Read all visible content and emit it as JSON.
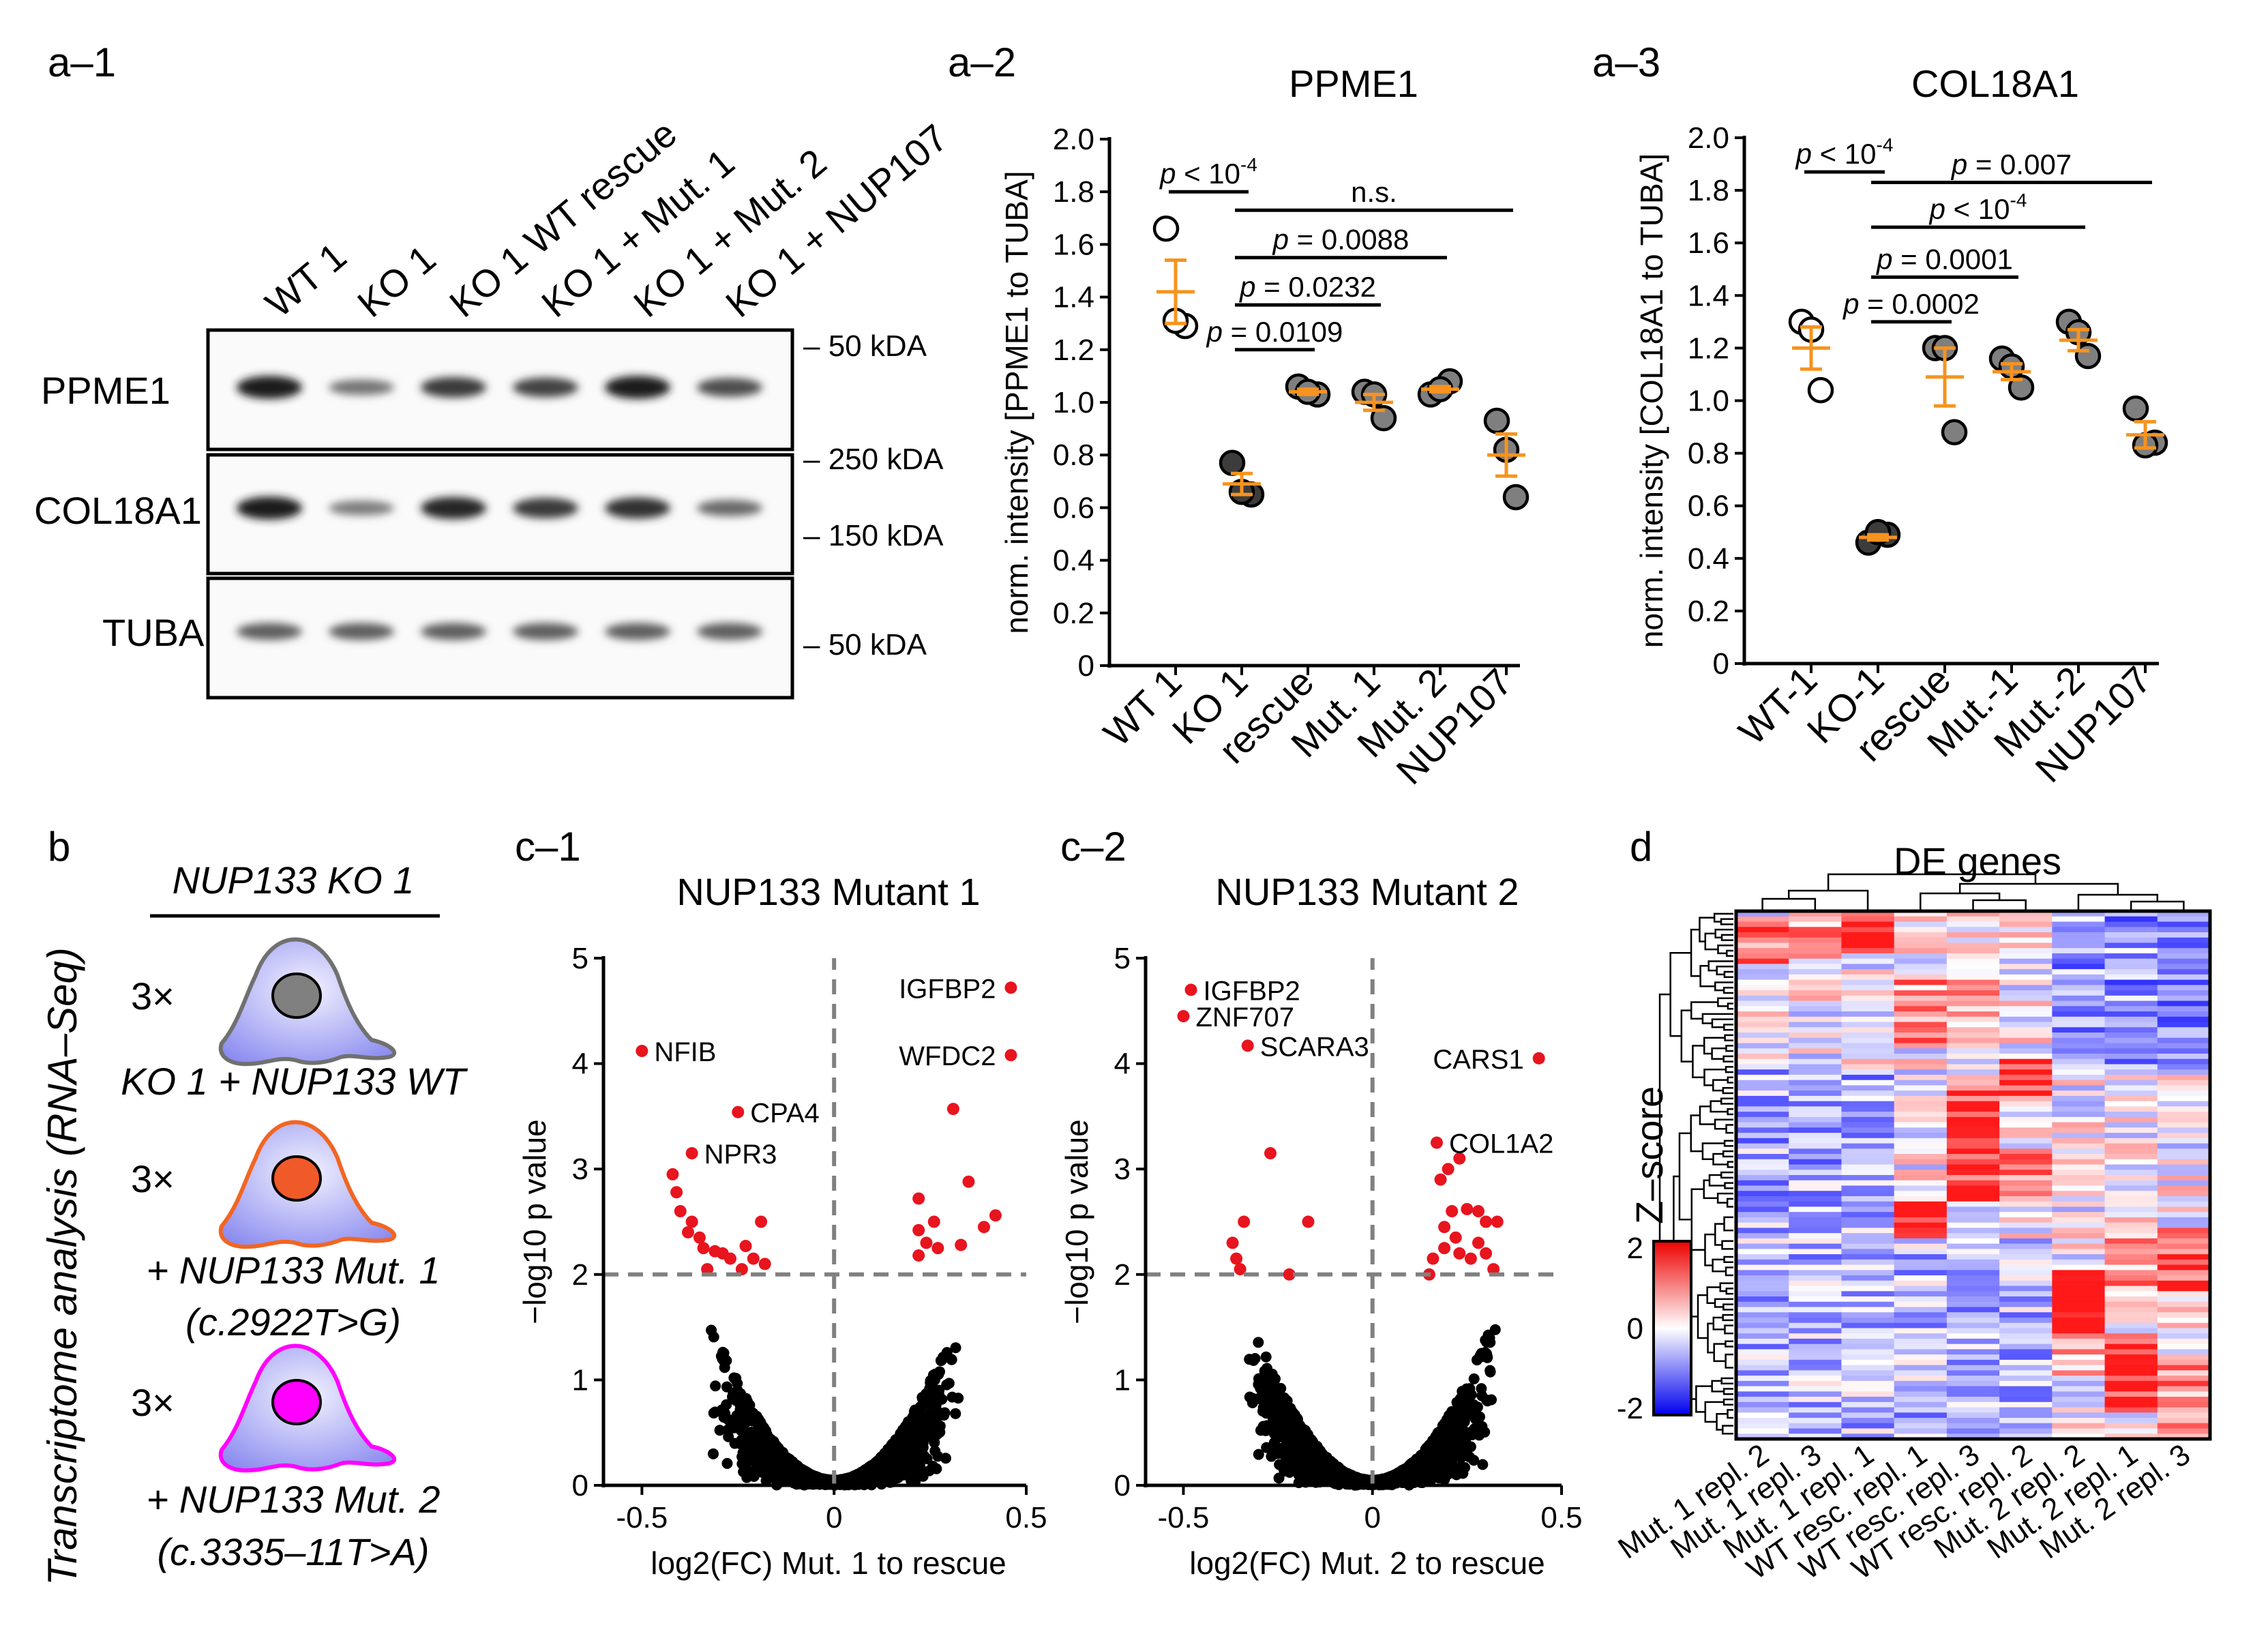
{
  "panels": {
    "a1": {
      "label": "a–1",
      "lanes": [
        "WT 1",
        "KO 1",
        "KO 1 WT rescue",
        "KO 1 + Mut. 1",
        "KO 1 + Mut. 2",
        "KO 1 + NUP107"
      ],
      "blots": [
        {
          "name": "PPME1",
          "markers": [
            "– 50 kDA"
          ]
        },
        {
          "name": "COL18A1",
          "markers": [
            "– 250 kDA",
            "– 150 kDA"
          ]
        },
        {
          "name": "TUBA",
          "markers": [
            "– 50 kDA"
          ]
        }
      ],
      "band_intensity": {
        "PPME1": [
          0.9,
          0.45,
          0.75,
          0.7,
          0.9,
          0.65
        ],
        "COL18A1": [
          0.9,
          0.4,
          0.85,
          0.75,
          0.8,
          0.5
        ],
        "TUBA": [
          0.55,
          0.55,
          0.55,
          0.55,
          0.55,
          0.55
        ]
      }
    },
    "b": {
      "label": "b",
      "vertical_title": "Transcriptome analysis (RNA–Seq)",
      "header": "NUP133 KO 1",
      "groups": [
        {
          "count": "3×",
          "line1": "KO 1 + NUP133 WT",
          "line2": "",
          "nucleus_color": "#808080",
          "outline_color": "#707070"
        },
        {
          "count": "3×",
          "line1": "+ NUP133 Mut. 1",
          "line2": "(c.2922T>G)",
          "nucleus_color": "#f05a28",
          "outline_color": "#f26522"
        },
        {
          "count": "3×",
          "line1": "+ NUP133 Mut. 2",
          "line2": "(c.3335–11T>A)",
          "nucleus_color": "#ff00ff",
          "outline_color": "#ff00ff"
        }
      ]
    },
    "c1_labels": {
      "label": "c–1",
      "genes": [
        "IGFBP2",
        "WFDC2",
        "NFIB",
        "CPA4",
        "NPR3"
      ]
    },
    "c2_labels": {
      "label": "c–2",
      "genes": [
        "IGFBP2",
        "ZNF707",
        "SCARA3",
        "CARS1",
        "COL1A2"
      ]
    },
    "d": {
      "label": "d",
      "title": "DE genes",
      "colorbar_title": "Z–score",
      "colorbar_ticks": [
        "2",
        "0",
        "-2"
      ],
      "columns": [
        "Mut. 1 repl. 2",
        "Mut. 1 repl. 3",
        "Mut. 1 repl. 1",
        "WT resc. repl. 1",
        "WT resc. repl. 3",
        "WT resc. repl. 2",
        "Mut. 2 repl. 2",
        "Mut. 2 repl. 1",
        "Mut. 2 repl. 3"
      ]
    }
  },
  "chart_data": [
    {
      "id": "a2",
      "panel_label": "a–2",
      "type": "scatter",
      "title": "PPME1",
      "ylabel": "norm. intensity  [PPME1 to TUBA]",
      "ylim": [
        0,
        2.0
      ],
      "yticks": [
        "0",
        "0.2",
        "0.4",
        "0.6",
        "0.8",
        "1.0",
        "1.2",
        "1.4",
        "1.6",
        "1.8",
        "2.0"
      ],
      "categories": [
        "WT 1",
        "KO 1",
        "rescue",
        "Mut. 1",
        "Mut. 2",
        "NUP107"
      ],
      "points": [
        [
          1.66,
          1.29,
          1.31
        ],
        [
          0.77,
          0.65,
          0.66
        ],
        [
          1.06,
          1.03,
          1.04
        ],
        [
          1.04,
          0.94,
          1.03
        ],
        [
          1.03,
          1.08,
          1.05
        ],
        [
          0.93,
          0.64,
          0.82
        ]
      ],
      "means": [
        1.42,
        0.69,
        1.04,
        1.0,
        1.05,
        0.8
      ],
      "sem": [
        0.12,
        0.04,
        0.01,
        0.03,
        0.01,
        0.08
      ],
      "significance": [
        {
          "from": 0,
          "to": 1,
          "level": 1.8,
          "prefix": "p",
          "text": " < 10",
          "sup": "-4"
        },
        {
          "from": 1,
          "to": 5,
          "level": 1.73,
          "prefix": "",
          "text": "n.s.",
          "sup": ""
        },
        {
          "from": 1,
          "to": 4,
          "level": 1.55,
          "prefix": "p",
          "text": " = 0.0088",
          "sup": ""
        },
        {
          "from": 1,
          "to": 3,
          "level": 1.37,
          "prefix": "p",
          "text": " = 0.0232",
          "sup": ""
        },
        {
          "from": 1,
          "to": 2,
          "level": 1.2,
          "prefix": "p",
          "text": " = 0.0109",
          "sup": ""
        }
      ]
    },
    {
      "id": "a3",
      "panel_label": "a–3",
      "type": "scatter",
      "title": "COL18A1",
      "ylabel": "norm. intensity  [COL18A1 to TUBA]",
      "ylim": [
        0,
        2.0
      ],
      "yticks": [
        "0",
        "0.2",
        "0.4",
        "0.6",
        "0.8",
        "1.0",
        "1.2",
        "1.4",
        "1.6",
        "1.8",
        "2.0"
      ],
      "categories": [
        "WT-1",
        "KO-1",
        "rescue",
        "Mut.-1",
        "Mut.-2",
        "NUP107"
      ],
      "points": [
        [
          1.3,
          1.04,
          1.27
        ],
        [
          0.46,
          0.49,
          0.5
        ],
        [
          1.2,
          0.88,
          1.2
        ],
        [
          1.16,
          1.05,
          1.13
        ],
        [
          1.3,
          1.17,
          1.26
        ],
        [
          0.97,
          0.84,
          0.83
        ]
      ],
      "means": [
        1.2,
        0.48,
        1.09,
        1.11,
        1.23,
        0.87
      ],
      "sem": [
        0.08,
        0.01,
        0.11,
        0.03,
        0.04,
        0.05
      ],
      "significance": [
        {
          "from": 0,
          "to": 1,
          "level": 1.87,
          "prefix": "p",
          "text": " < 10",
          "sup": "-4"
        },
        {
          "from": 1,
          "to": 5,
          "level": 1.83,
          "prefix": "p",
          "text": " = 0.007",
          "sup": ""
        },
        {
          "from": 1,
          "to": 4,
          "level": 1.66,
          "prefix": "p",
          "text": " < 10",
          "sup": "-4"
        },
        {
          "from": 1,
          "to": 3,
          "level": 1.47,
          "prefix": "p",
          "text": " = 0.0001",
          "sup": ""
        },
        {
          "from": 1,
          "to": 2,
          "level": 1.3,
          "prefix": "p",
          "text": " = 0.0002",
          "sup": ""
        }
      ]
    },
    {
      "id": "c1",
      "type": "scatter",
      "title": "NUP133 Mutant 1",
      "xlabel": "log2(FC) Mut. 1 to rescue",
      "ylabel": "−log10 p value",
      "xlim": [
        -0.6,
        0.5
      ],
      "ylim": [
        0,
        5
      ],
      "xticks": [
        "-0.5",
        "0",
        "0.5"
      ],
      "yticks": [
        "0",
        "1",
        "2",
        "3",
        "4",
        "5"
      ],
      "threshold_y": 2,
      "labeled": [
        {
          "gene": "IGFBP2",
          "x": 0.46,
          "y": 4.72
        },
        {
          "gene": "WFDC2",
          "x": 0.46,
          "y": 4.08
        },
        {
          "gene": "NFIB",
          "x": -0.5,
          "y": 4.12
        },
        {
          "gene": "CPA4",
          "x": -0.25,
          "y": 3.54
        },
        {
          "gene": "NPR3",
          "x": -0.37,
          "y": 3.15
        }
      ],
      "significant": [
        [
          0.31,
          3.57
        ],
        [
          0.35,
          2.88
        ],
        [
          0.22,
          2.72
        ],
        [
          0.42,
          2.56
        ],
        [
          0.39,
          2.45
        ],
        [
          0.22,
          2.42
        ],
        [
          0.26,
          2.5
        ],
        [
          0.24,
          2.3
        ],
        [
          0.33,
          2.28
        ],
        [
          0.22,
          2.18
        ],
        [
          0.27,
          2.25
        ],
        [
          -0.42,
          2.95
        ],
        [
          -0.41,
          2.78
        ],
        [
          -0.4,
          2.6
        ],
        [
          -0.37,
          2.5
        ],
        [
          -0.35,
          2.35
        ],
        [
          -0.34,
          2.25
        ],
        [
          -0.31,
          2.22
        ],
        [
          -0.29,
          2.2
        ],
        [
          -0.27,
          2.15
        ],
        [
          -0.23,
          2.27
        ],
        [
          -0.19,
          2.5
        ],
        [
          -0.18,
          2.1
        ],
        [
          -0.33,
          2.05
        ],
        [
          -0.24,
          2.05
        ],
        [
          -0.38,
          2.4
        ],
        [
          -0.21,
          2.15
        ]
      ]
    },
    {
      "id": "c2",
      "type": "scatter",
      "title": "NUP133 Mutant 2",
      "xlabel": "log2(FC) Mut. 2 to rescue",
      "ylabel": "−log10 p value",
      "xlim": [
        -0.6,
        0.5
      ],
      "ylim": [
        0,
        5
      ],
      "xticks": [
        "-0.5",
        "0",
        "0.5"
      ],
      "yticks": [
        "0",
        "1",
        "2",
        "3",
        "4",
        "5"
      ],
      "threshold_y": 2,
      "labeled": [
        {
          "gene": "IGFBP2",
          "x": -0.48,
          "y": 4.7
        },
        {
          "gene": "ZNF707",
          "x": -0.5,
          "y": 4.45
        },
        {
          "gene": "SCARA3",
          "x": -0.33,
          "y": 4.17
        },
        {
          "gene": "CARS1",
          "x": 0.44,
          "y": 4.05
        },
        {
          "gene": "COL1A2",
          "x": 0.17,
          "y": 3.25
        }
      ],
      "significant": [
        [
          0.18,
          2.9
        ],
        [
          0.2,
          3.0
        ],
        [
          0.23,
          3.1
        ],
        [
          0.21,
          2.6
        ],
        [
          0.25,
          2.62
        ],
        [
          0.28,
          2.6
        ],
        [
          0.19,
          2.45
        ],
        [
          0.22,
          2.35
        ],
        [
          0.3,
          2.5
        ],
        [
          0.33,
          2.5
        ],
        [
          0.28,
          2.3
        ],
        [
          0.26,
          2.15
        ],
        [
          0.23,
          2.2
        ],
        [
          0.3,
          2.2
        ],
        [
          0.19,
          2.25
        ],
        [
          0.16,
          2.15
        ],
        [
          0.15,
          2.0
        ],
        [
          0.32,
          2.05
        ],
        [
          -0.27,
          3.15
        ],
        [
          -0.34,
          2.5
        ],
        [
          -0.17,
          2.5
        ],
        [
          -0.37,
          2.3
        ],
        [
          -0.35,
          2.05
        ],
        [
          -0.22,
          2.0
        ],
        [
          -0.36,
          2.15
        ]
      ]
    }
  ]
}
